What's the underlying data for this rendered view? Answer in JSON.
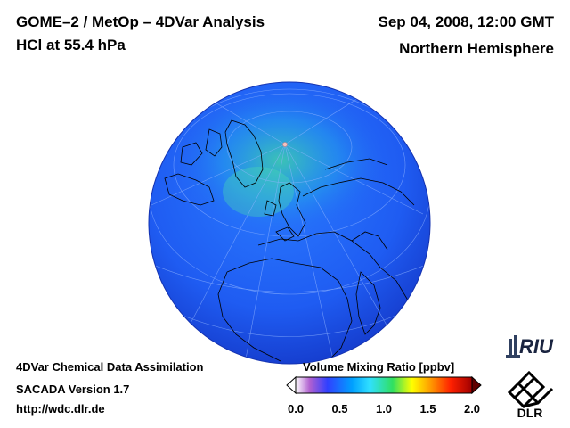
{
  "header": {
    "title": "GOME–2 / MetOp – 4DVar Analysis",
    "species": "HCl at 55.4 hPa",
    "datetime": "Sep 04, 2008, 12:00 GMT",
    "hemisphere": "Northern Hemisphere"
  },
  "footer": {
    "line1": "4DVar Chemical Data Assimilation",
    "line2": "SACADA Version 1.7",
    "line3": "http://wdc.dlr.de"
  },
  "colorbar": {
    "title": "Volume Mixing Ratio [ppbv]",
    "ticks": [
      "0.0",
      "0.5",
      "1.0",
      "1.5",
      "2.0"
    ],
    "tick_values": [
      0.0,
      0.5,
      1.0,
      1.5,
      2.0
    ],
    "range": [
      0.0,
      2.0
    ],
    "colors": [
      "#ffffff",
      "#b060d0",
      "#3040ff",
      "#00a0ff",
      "#30e0ff",
      "#30e060",
      "#ffff00",
      "#ffa000",
      "#ff2000",
      "#a00000"
    ]
  },
  "logos": {
    "riu": "RIU",
    "dlr": "DLR"
  },
  "map": {
    "fill_color": "#1f60f4",
    "highlight_color": "#40c8a0"
  }
}
